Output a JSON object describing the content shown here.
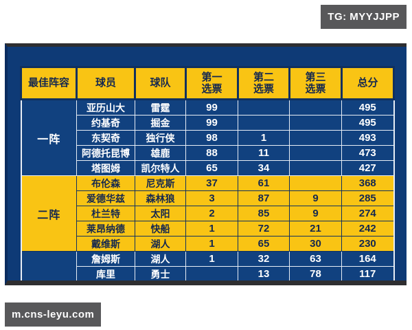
{
  "watermarks": {
    "tg_badge": "TG: MYYJJPP",
    "site_badge": "m.cns-leyu.com"
  },
  "chart_data": {
    "type": "table",
    "title": "",
    "columns": [
      "最佳阵容",
      "球员",
      "球队",
      "第一\n选票",
      "第二\n选票",
      "第三\n选票",
      "总分"
    ],
    "groups": [
      {
        "label": "一阵",
        "theme": "blue",
        "rows": [
          [
            "亚历山大",
            "雷霆",
            "99",
            "",
            "",
            "495"
          ],
          [
            "约基奇",
            "掘金",
            "99",
            "",
            "",
            "495"
          ],
          [
            "东契奇",
            "独行侠",
            "98",
            "1",
            "",
            "493"
          ],
          [
            "阿德托昆博",
            "雄鹿",
            "88",
            "11",
            "",
            "473"
          ],
          [
            "塔图姆",
            "凯尔特人",
            "65",
            "34",
            "",
            "427"
          ]
        ]
      },
      {
        "label": "二阵",
        "theme": "yellow",
        "rows": [
          [
            "布伦森",
            "尼克斯",
            "37",
            "61",
            "",
            "368"
          ],
          [
            "爱德华兹",
            "森林狼",
            "3",
            "87",
            "9",
            "285"
          ],
          [
            "杜兰特",
            "太阳",
            "2",
            "85",
            "9",
            "274"
          ],
          [
            "莱昂纳德",
            "快船",
            "1",
            "72",
            "21",
            "242"
          ],
          [
            "戴维斯",
            "湖人",
            "1",
            "65",
            "30",
            "230"
          ]
        ]
      },
      {
        "label": "",
        "theme": "blue",
        "rows": [
          [
            "詹姆斯",
            "湖人",
            "1",
            "32",
            "63",
            "164"
          ],
          [
            "库里",
            "勇士",
            "",
            "13",
            "78",
            "117"
          ]
        ]
      }
    ]
  },
  "colors": {
    "panel_blue": "#0e3a76",
    "row_blue": "#11417f",
    "header_yellow": "#f9c414",
    "navy_text": "#15284f",
    "badge_gray": "#58585a"
  }
}
